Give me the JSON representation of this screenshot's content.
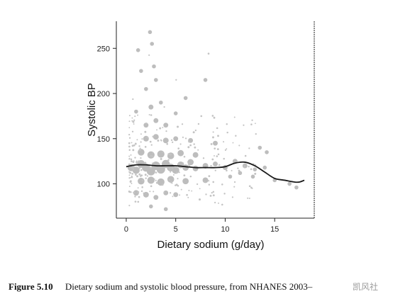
{
  "chart_data": {
    "type": "scatter",
    "title": "",
    "xlabel": "Dietary sodium (g/day)",
    "ylabel": "Systolic BP",
    "xlim": [
      -1,
      19
    ],
    "ylim": [
      62,
      280
    ],
    "x_ticks": [
      0,
      5,
      10,
      15
    ],
    "y_ticks": [
      100,
      150,
      200,
      250
    ],
    "series": [
      {
        "type": "smooth-line",
        "x": [
          0,
          1,
          2,
          3,
          4,
          5,
          6,
          7,
          8,
          9,
          10,
          11,
          12,
          13,
          14,
          15,
          16,
          17,
          17.5,
          18
        ],
        "y": [
          119,
          121,
          121,
          120,
          120,
          120,
          119,
          118,
          118,
          118,
          119,
          123,
          124,
          120,
          113,
          106,
          104,
          102,
          102,
          104
        ]
      }
    ],
    "point_cloud": [
      {
        "x": 0.5,
        "y": 118,
        "n": 6
      },
      {
        "x": 1,
        "y": 115,
        "n": 6
      },
      {
        "x": 1.5,
        "y": 122,
        "n": 7
      },
      {
        "x": 2,
        "y": 118,
        "n": 8
      },
      {
        "x": 2.5,
        "y": 114,
        "n": 9
      },
      {
        "x": 3,
        "y": 120,
        "n": 9
      },
      {
        "x": 3.5,
        "y": 116,
        "n": 9
      },
      {
        "x": 4,
        "y": 122,
        "n": 8
      },
      {
        "x": 4.5,
        "y": 118,
        "n": 7
      },
      {
        "x": 5,
        "y": 115,
        "n": 6
      },
      {
        "x": 5.5,
        "y": 121,
        "n": 5
      },
      {
        "x": 6,
        "y": 118,
        "n": 4
      },
      {
        "x": 6.5,
        "y": 124,
        "n": 4
      },
      {
        "x": 7,
        "y": 117,
        "n": 3
      },
      {
        "x": 8,
        "y": 120,
        "n": 3
      },
      {
        "x": 9,
        "y": 122,
        "n": 2
      },
      {
        "x": 10,
        "y": 118,
        "n": 2
      },
      {
        "x": 11,
        "y": 125,
        "n": 2
      },
      {
        "x": 12,
        "y": 120,
        "n": 2
      },
      {
        "x": 13,
        "y": 116,
        "n": 1
      },
      {
        "x": 14,
        "y": 118,
        "n": 1
      },
      {
        "x": 1.5,
        "y": 135,
        "n": 5
      },
      {
        "x": 2.5,
        "y": 132,
        "n": 6
      },
      {
        "x": 3.5,
        "y": 133,
        "n": 6
      },
      {
        "x": 4.5,
        "y": 131,
        "n": 5
      },
      {
        "x": 5.5,
        "y": 134,
        "n": 4
      },
      {
        "x": 7,
        "y": 132,
        "n": 3
      },
      {
        "x": 1.5,
        "y": 103,
        "n": 5
      },
      {
        "x": 2.5,
        "y": 104,
        "n": 6
      },
      {
        "x": 3.5,
        "y": 102,
        "n": 6
      },
      {
        "x": 4.5,
        "y": 105,
        "n": 5
      },
      {
        "x": 6,
        "y": 103,
        "n": 4
      },
      {
        "x": 8,
        "y": 104,
        "n": 3
      },
      {
        "x": 2,
        "y": 150,
        "n": 3
      },
      {
        "x": 3,
        "y": 152,
        "n": 3
      },
      {
        "x": 4,
        "y": 148,
        "n": 3
      },
      {
        "x": 5,
        "y": 150,
        "n": 2
      },
      {
        "x": 6.5,
        "y": 148,
        "n": 2
      },
      {
        "x": 9,
        "y": 145,
        "n": 2
      },
      {
        "x": 2,
        "y": 165,
        "n": 2
      },
      {
        "x": 3,
        "y": 170,
        "n": 2
      },
      {
        "x": 4,
        "y": 165,
        "n": 2
      },
      {
        "x": 1,
        "y": 180,
        "n": 1
      },
      {
        "x": 2.5,
        "y": 185,
        "n": 2
      },
      {
        "x": 3.5,
        "y": 190,
        "n": 1
      },
      {
        "x": 5,
        "y": 178,
        "n": 1
      },
      {
        "x": 2,
        "y": 205,
        "n": 1
      },
      {
        "x": 3,
        "y": 215,
        "n": 1
      },
      {
        "x": 1.5,
        "y": 225,
        "n": 1
      },
      {
        "x": 2.8,
        "y": 230,
        "n": 1
      },
      {
        "x": 1.2,
        "y": 248,
        "n": 1
      },
      {
        "x": 2.4,
        "y": 268,
        "n": 1
      },
      {
        "x": 2.6,
        "y": 255,
        "n": 1
      },
      {
        "x": 8,
        "y": 215,
        "n": 1
      },
      {
        "x": 6,
        "y": 195,
        "n": 1
      },
      {
        "x": 1,
        "y": 90,
        "n": 3
      },
      {
        "x": 2,
        "y": 88,
        "n": 3
      },
      {
        "x": 3,
        "y": 85,
        "n": 2
      },
      {
        "x": 4,
        "y": 90,
        "n": 2
      },
      {
        "x": 5,
        "y": 88,
        "n": 2
      },
      {
        "x": 2.5,
        "y": 75,
        "n": 1
      },
      {
        "x": 4,
        "y": 72,
        "n": 1
      },
      {
        "x": 13.5,
        "y": 140,
        "n": 1
      },
      {
        "x": 14.2,
        "y": 135,
        "n": 1
      },
      {
        "x": 15,
        "y": 104,
        "n": 1
      },
      {
        "x": 16.5,
        "y": 100,
        "n": 1
      },
      {
        "x": 17.2,
        "y": 96,
        "n": 1
      },
      {
        "x": 10.5,
        "y": 108,
        "n": 1
      },
      {
        "x": 11.5,
        "y": 112,
        "n": 1
      },
      {
        "x": 12.8,
        "y": 108,
        "n": 1
      }
    ],
    "grid": false,
    "legend": "none"
  },
  "caption": {
    "number": "Figure 5.10",
    "text": "Dietary sodium and systolic blood pressure, from NHANES 2003–"
  },
  "watermark": "凯风社"
}
